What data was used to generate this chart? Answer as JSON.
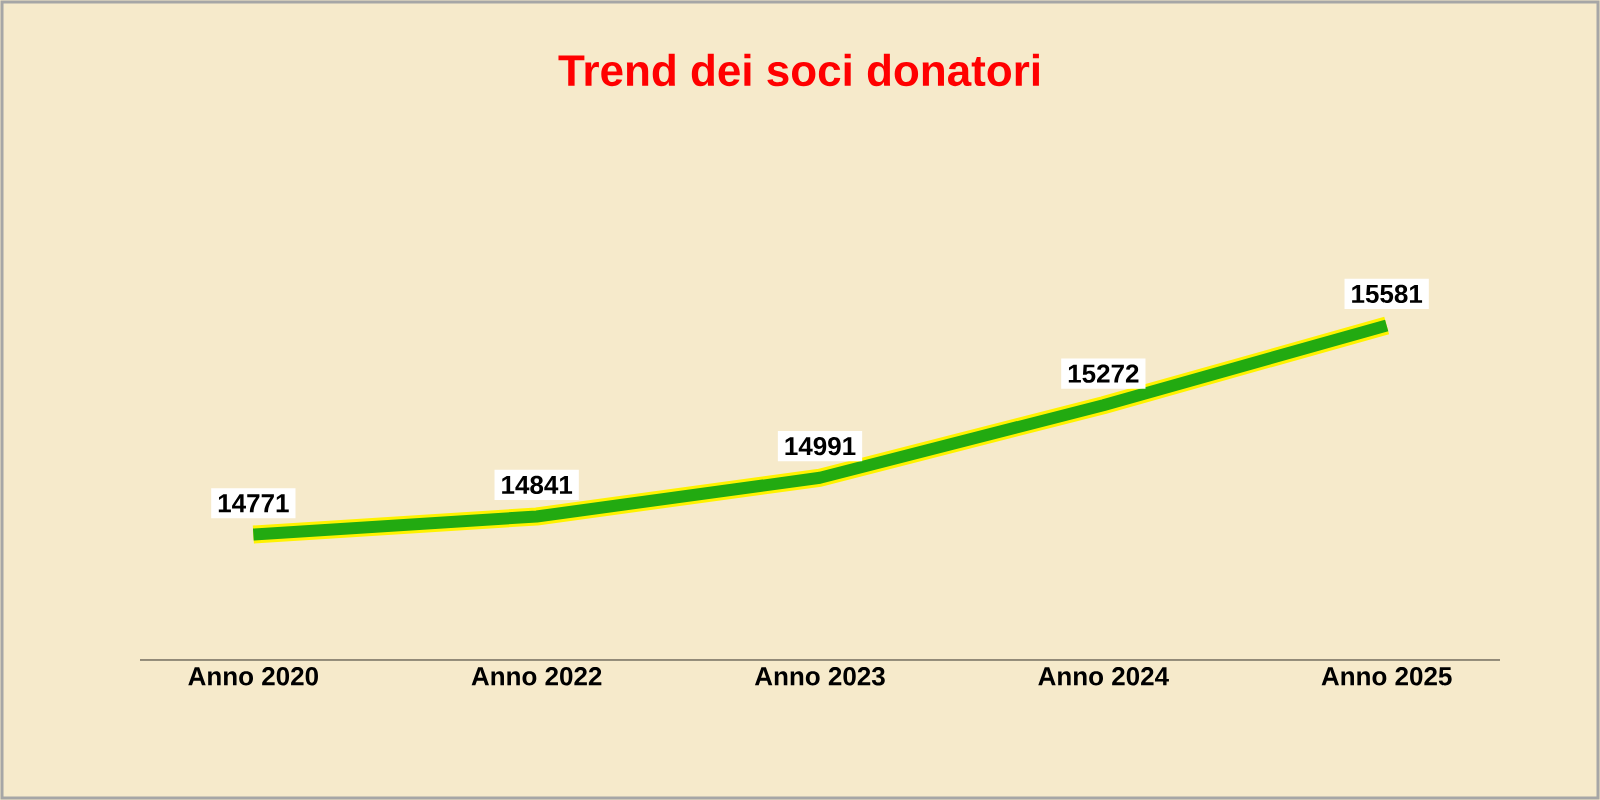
{
  "chart_data": {
    "type": "line",
    "title": "Trend dei soci donatori",
    "categories": [
      "Anno 2020",
      "Anno 2022",
      "Anno 2023",
      "Anno 2024",
      "Anno 2025"
    ],
    "values": [
      14771,
      14841,
      14991,
      15272,
      15581
    ],
    "color": "#22aa11",
    "data_labels": true,
    "tick_labels": "x"
  }
}
